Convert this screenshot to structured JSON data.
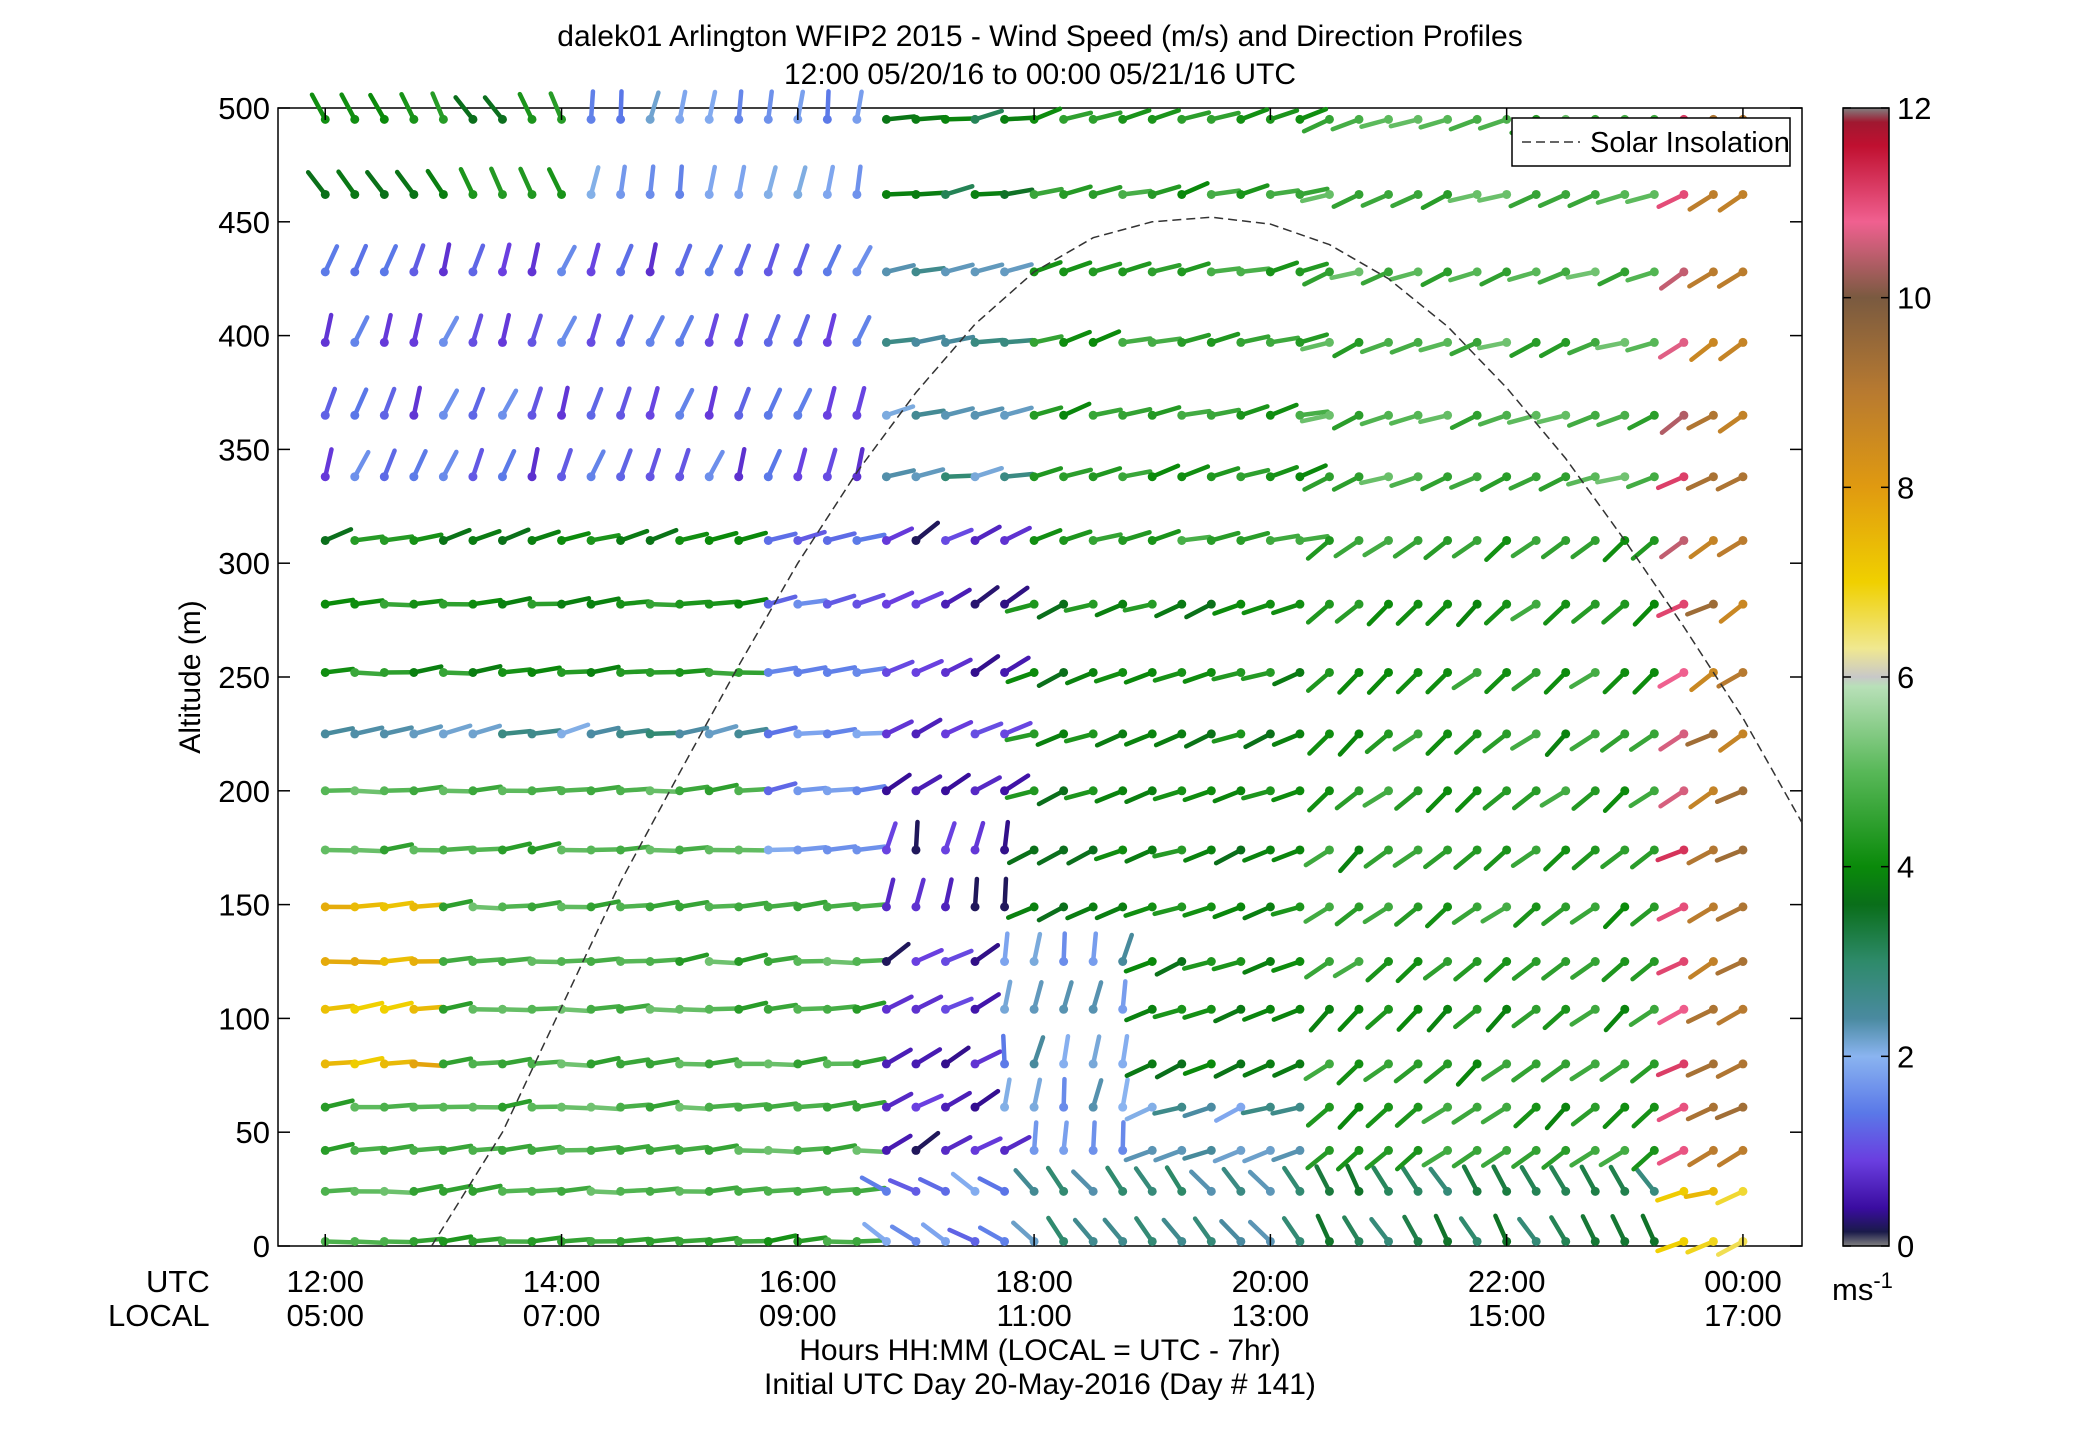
{
  "chart_data": {
    "type": "wind-barb-profile",
    "title_line1": "dalek01 Arlington WFIP2 2015 - Wind Speed (m/s) and Direction Profiles",
    "title_line2": "12:00 05/20/16 to 00:00 05/21/16  UTC",
    "ylabel": "Altitude (m)",
    "ylim": [
      0,
      500
    ],
    "yticks": [
      "0",
      "50",
      "100",
      "150",
      "200",
      "250",
      "300",
      "350",
      "400",
      "450",
      "500"
    ],
    "xlim_hours": [
      11.6,
      24.5
    ],
    "xticks_hours": [
      12,
      14,
      16,
      18,
      20,
      22,
      24
    ],
    "utc_label": "UTC",
    "local_label": "LOCAL",
    "utc_ticks": [
      "12:00",
      "14:00",
      "16:00",
      "18:00",
      "20:00",
      "22:00",
      "00:00"
    ],
    "local_ticks": [
      "05:00",
      "07:00",
      "09:00",
      "11:00",
      "13:00",
      "15:00",
      "17:00"
    ],
    "xlabel_line1": "Hours HH:MM  (LOCAL = UTC - 7hr)",
    "xlabel_line2": "Initial UTC Day 20-May-2016 (Day # 141)",
    "legend": {
      "label": "Solar Insolation",
      "position": "top-right"
    },
    "colorbar": {
      "range": [
        0,
        12
      ],
      "ticks": [
        "0",
        "2",
        "4",
        "6",
        "8",
        "10",
        "12"
      ],
      "unit_base": "ms",
      "unit_exp": "-1",
      "stops": [
        [
          0.0,
          "#808080"
        ],
        [
          0.15,
          "#1a1a4a"
        ],
        [
          0.4,
          "#3a0ca0"
        ],
        [
          0.9,
          "#6a3ee0"
        ],
        [
          1.4,
          "#5a78e8"
        ],
        [
          2.0,
          "#8ab4f0"
        ],
        [
          2.4,
          "#4a8aa0"
        ],
        [
          3.0,
          "#2e8a6a"
        ],
        [
          3.6,
          "#0a6e1a"
        ],
        [
          4.0,
          "#0a8a0a"
        ],
        [
          5.0,
          "#58b858"
        ],
        [
          5.9,
          "#b8e0b8"
        ],
        [
          6.0,
          "#c8c8c8"
        ],
        [
          6.3,
          "#f0e890"
        ],
        [
          7.0,
          "#f0d000"
        ],
        [
          8.0,
          "#e09a10"
        ],
        [
          9.0,
          "#b87a30"
        ],
        [
          10.0,
          "#7a5a40"
        ],
        [
          10.8,
          "#f06090"
        ],
        [
          11.6,
          "#c01030"
        ],
        [
          11.85,
          "#a01830"
        ],
        [
          12.0,
          "#808080"
        ]
      ]
    },
    "altitudes_m": [
      2,
      24,
      42,
      61,
      80,
      104,
      125,
      149,
      174,
      200,
      225,
      252,
      282,
      310,
      338,
      365,
      397,
      428,
      462,
      495
    ],
    "time_hours": [
      12.0,
      12.25,
      12.5,
      12.75,
      13.0,
      13.25,
      13.5,
      13.75,
      14.0,
      14.25,
      14.5,
      14.75,
      15.0,
      15.25,
      15.5,
      15.75,
      16.0,
      16.25,
      16.5,
      16.75,
      17.0,
      17.25,
      17.5,
      17.75,
      18.0,
      18.25,
      18.5,
      18.75,
      19.0,
      19.25,
      19.5,
      19.75,
      20.0,
      20.25,
      20.5,
      20.75,
      21.0,
      21.25,
      21.5,
      21.75,
      22.0,
      22.25,
      22.5,
      22.75,
      23.0,
      23.25,
      23.5,
      23.75,
      24.0
    ],
    "solar_insolation_profile": {
      "units": "altitude-axis equivalent (m)",
      "x": [
        12.9,
        13.5,
        14.0,
        14.5,
        15.0,
        15.5,
        16.0,
        16.5,
        17.0,
        17.5,
        18.0,
        18.5,
        19.0,
        19.5,
        20.0,
        20.5,
        21.0,
        21.5,
        22.0,
        22.5,
        23.0,
        23.5,
        24.0,
        24.5
      ],
      "y": [
        0,
        50,
        105,
        160,
        208,
        255,
        300,
        340,
        375,
        405,
        428,
        443,
        450,
        452,
        449,
        440,
        425,
        404,
        377,
        346,
        310,
        272,
        232,
        186
      ]
    },
    "sample_barbs": [
      {
        "time": 12.0,
        "altitude": 495,
        "speed": 4.5,
        "direction_deg": 350
      },
      {
        "time": 14.5,
        "altitude": 495,
        "speed": 2.0,
        "direction_deg": 20
      },
      {
        "time": 18.0,
        "altitude": 495,
        "speed": 4.2,
        "direction_deg": 75
      },
      {
        "time": 23.5,
        "altitude": 495,
        "speed": 9.0,
        "direction_deg": 240
      },
      {
        "time": 12.0,
        "altitude": 149,
        "speed": 7.8,
        "direction_deg": 85
      },
      {
        "time": 17.0,
        "altitude": 149,
        "speed": 0.4,
        "direction_deg": 200
      },
      {
        "time": 20.0,
        "altitude": 282,
        "speed": 4.5,
        "direction_deg": 260
      },
      {
        "time": 23.0,
        "altitude": 104,
        "speed": 11.5,
        "direction_deg": 240
      }
    ]
  }
}
